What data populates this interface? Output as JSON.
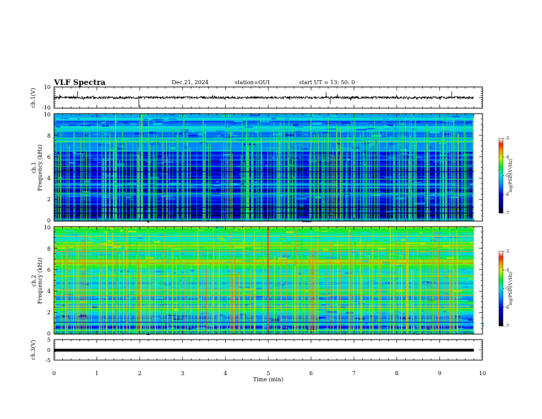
{
  "header": {
    "title": "VLF Spectra",
    "date": "Dec.21, 2024",
    "station": "station=OUI",
    "start": "start  UT  =   13: 50: 0"
  },
  "chart_data": [
    {
      "type": "line",
      "title": "",
      "ylabel": "ch.1(V)",
      "ylim": [
        -10,
        10
      ],
      "yticks": [
        "10",
        "-10"
      ],
      "xlim": [
        0,
        10
      ],
      "baseline": 0,
      "trace_color": "#000000"
    },
    {
      "type": "heatmap",
      "ylabel": "ch.1\nFrequency (kHz)",
      "ylabel_lines": [
        "ch.1",
        "Frequency  (kHz)"
      ],
      "ylim": [
        0,
        10
      ],
      "yticks": [
        "0",
        "2",
        "4",
        "6",
        "8",
        "10"
      ],
      "xlim": [
        0,
        9.8
      ],
      "intensity": "low",
      "colorbar": {
        "label": "log(PSD)(V²/Hz)",
        "ticks": [
          "-3",
          "-4",
          "-5",
          "-6",
          "-7"
        ],
        "range": [
          -7,
          -3
        ]
      }
    },
    {
      "type": "heatmap",
      "ylabel_lines": [
        "ch.2",
        "Frequency  (kHz)"
      ],
      "ylim": [
        0,
        10
      ],
      "yticks": [
        "0",
        "2",
        "4",
        "6",
        "8",
        "10"
      ],
      "xlim": [
        0,
        9.8
      ],
      "intensity": "high",
      "colorbar": {
        "label": "log(PSD)(V²/Hz)",
        "ticks": [
          "-3",
          "-4",
          "-5",
          "-6",
          "-7"
        ],
        "range": [
          -7,
          -3
        ]
      }
    },
    {
      "type": "line",
      "ylabel": "ch.3(V)",
      "ylim": [
        -5,
        5
      ],
      "yticks": [
        "5",
        "0",
        "-5"
      ],
      "xlim": [
        0,
        10
      ],
      "baseline": 0,
      "trace_color": "#000000"
    }
  ],
  "xaxis": {
    "label": "Time  (min)",
    "ticks": [
      "0",
      "1",
      "2",
      "3",
      "4",
      "5",
      "6",
      "7",
      "8",
      "9",
      "10"
    ],
    "range": [
      0,
      10
    ]
  }
}
